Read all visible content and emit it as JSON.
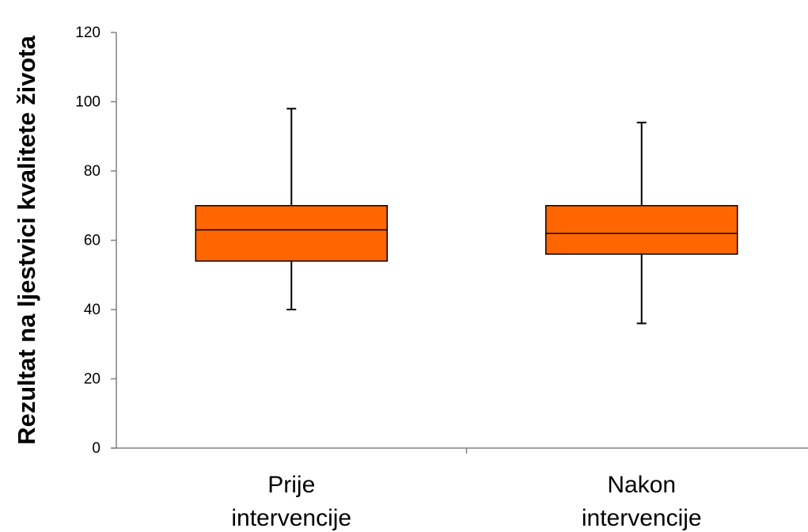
{
  "chart_data": {
    "type": "boxplot",
    "title": "",
    "xlabel": "",
    "ylabel": "Rezultat na ljestvici kvalitete života",
    "ylim": [
      0,
      120
    ],
    "yticks": [
      0,
      20,
      40,
      60,
      80,
      100,
      120
    ],
    "categories": [
      [
        "Prije",
        "intervencije"
      ],
      [
        "Nakon",
        "intervencije"
      ]
    ],
    "boxes": [
      {
        "min": 40,
        "q1": 54,
        "median": 63,
        "q3": 70,
        "max": 98
      },
      {
        "min": 36,
        "q1": 56,
        "median": 62,
        "q3": 70,
        "max": 94
      }
    ],
    "grid": false,
    "legend": "none",
    "colors": {
      "box_fill": "#FF6600",
      "box_stroke": "#000000",
      "axis": "#808080"
    }
  }
}
